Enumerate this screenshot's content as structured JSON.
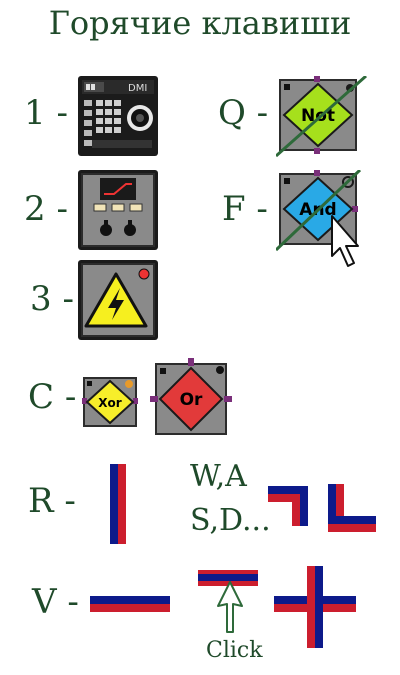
{
  "title": "Горячие клавиши",
  "keys": {
    "k1": "1 -",
    "k2": "2 -",
    "k3": "3 -",
    "kq": "Q -",
    "kf": "F -",
    "kc": "C -",
    "kr": "R -",
    "kv": "V -",
    "kwasd1": "W,A",
    "kwasd2": "S,D..."
  },
  "dmi": {
    "label": "DMI"
  },
  "gates": {
    "not": "Not",
    "and": "And",
    "xor": "Xor",
    "or": "Or"
  },
  "click_label": "Click",
  "colors": {
    "text": "#1f4a2a",
    "wire_blue": "#0d1a8a",
    "wire_red": "#cc1e2e",
    "not_gate": "#a6e01c",
    "and_gate": "#29a9e6",
    "xor_gate": "#f7ee2a",
    "or_gate": "#e23a3a"
  },
  "icons": {
    "dmi": "dmi-keypad-icon",
    "switch": "switch-panel-icon",
    "hazard": "high-voltage-icon",
    "cursor": "mouse-cursor-icon"
  }
}
